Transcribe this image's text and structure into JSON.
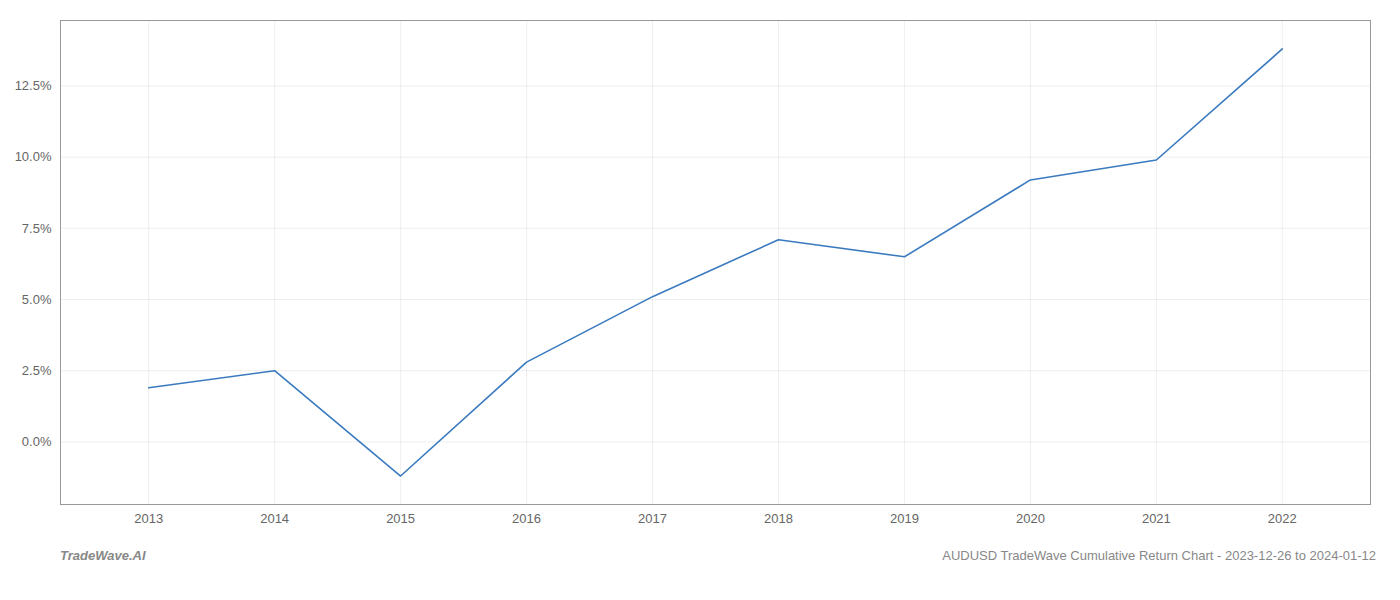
{
  "chart_data": {
    "type": "line",
    "x": [
      2013,
      2014,
      2015,
      2016,
      2017,
      2018,
      2019,
      2020,
      2021,
      2022
    ],
    "values": [
      0.019,
      0.025,
      -0.012,
      0.028,
      0.051,
      0.071,
      0.065,
      0.092,
      0.099,
      0.138
    ],
    "color": "#3a7abf",
    "xlim": [
      2012.3,
      2022.7
    ],
    "xticks": [
      2013,
      2014,
      2015,
      2016,
      2017,
      2018,
      2019,
      2020,
      2021,
      2022
    ],
    "ylim": [
      -0.022,
      0.148
    ],
    "yticks": [
      {
        "value": 0.0,
        "label": "0.0%"
      },
      {
        "value": 0.025,
        "label": "2.5%"
      },
      {
        "value": 0.05,
        "label": "5.0%"
      },
      {
        "value": 0.075,
        "label": "7.5%"
      },
      {
        "value": 0.1,
        "label": "10.0%"
      },
      {
        "value": 0.125,
        "label": "12.5%"
      }
    ],
    "grid": true,
    "annotations": [
      "TradeWave.AI",
      "AUDUSD TradeWave Cumulative Return Chart - 2023-12-26 to 2024-01-12"
    ]
  }
}
